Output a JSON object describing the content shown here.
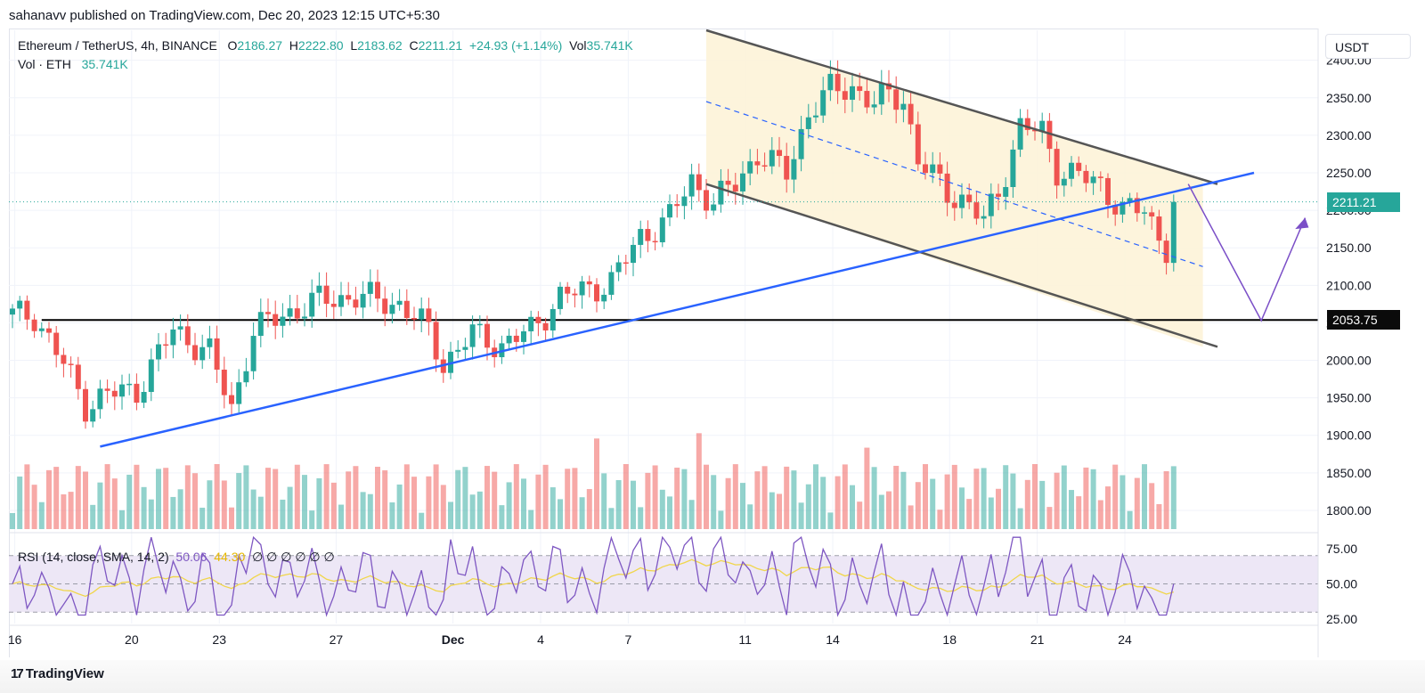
{
  "header": {
    "published_line": "sahanavv published on TradingView.com, Dec 20, 2023 12:15 UTC+5:30"
  },
  "legend": {
    "symbol": "Ethereum / TetherUS, 4h, BINANCE",
    "o_label": "O",
    "o_value": "2186.27",
    "h_label": "H",
    "h_value": "2222.80",
    "l_label": "L",
    "l_value": "2183.62",
    "c_label": "C",
    "c_value": "2211.21",
    "change": "+24.93 (+1.14%)",
    "vol_label": "Vol",
    "vol_value": "35.741K",
    "vol_row_label": "Vol · ETH",
    "vol_row_value": "35.741K",
    "rsi_label": "RSI (14, close, SMA, 14, 2)",
    "rsi_value": "50.06",
    "rsi_ma_value": "44.30",
    "rsi_extra": "∅ ∅ ∅ ∅ ∅ ∅"
  },
  "currency_button": "USDT",
  "price_tags": {
    "last": "2211.21",
    "support": "2053.75"
  },
  "footer": {
    "brand": "TradingView",
    "brand_mark": "17"
  },
  "colors": {
    "up": "#26a69a",
    "down": "#ef5350",
    "trendline": "#2962ff",
    "channel": "#555555",
    "channel_fill": "#fdf3d8",
    "projection": "#7b4fc7",
    "rsi": "#7e57c2",
    "rsi_ma": "#f0d64a",
    "rsi_band": "#ede7f6",
    "support": "#000000"
  },
  "chart_data": {
    "type": "candlestick",
    "price_axis": {
      "ylim": [
        1775,
        2440
      ],
      "ticks": [
        1800,
        1850,
        1900,
        1950,
        2000,
        2050,
        2100,
        2150,
        2200,
        2250,
        2300,
        2350,
        2400
      ]
    },
    "rsi_axis": {
      "ylim": [
        22,
        85
      ],
      "ticks": [
        25,
        50,
        75
      ]
    },
    "time_axis": {
      "labels": [
        "16",
        "20",
        "23",
        "27",
        "Dec",
        "4",
        "7",
        "11",
        "14",
        "18",
        "21",
        "24"
      ],
      "positions": [
        0.02,
        1.02,
        1.77,
        2.77,
        3.77,
        4.52,
        5.27,
        6.27,
        7.02,
        8.02,
        8.77,
        9.52
      ],
      "range": [
        0,
        10
      ]
    },
    "candle_count": 160,
    "anchors": [
      [
        0,
        2040
      ],
      [
        4,
        2060
      ],
      [
        8,
        2060
      ],
      [
        12,
        1995
      ],
      [
        15,
        1940
      ],
      [
        18,
        1955
      ],
      [
        22,
        1960
      ],
      [
        27,
        2040
      ],
      [
        32,
        2010
      ],
      [
        35,
        1935
      ],
      [
        38,
        2040
      ],
      [
        42,
        2060
      ],
      [
        47,
        2080
      ],
      [
        52,
        2085
      ],
      [
        58,
        2075
      ],
      [
        62,
        2040
      ],
      [
        64,
        1995
      ],
      [
        68,
        2035
      ],
      [
        72,
        2020
      ],
      [
        76,
        2040
      ],
      [
        80,
        2085
      ],
      [
        84,
        2095
      ],
      [
        87,
        2105
      ],
      [
        91,
        2165
      ],
      [
        95,
        2190
      ],
      [
        98,
        2240
      ],
      [
        101,
        2210
      ],
      [
        104,
        2235
      ],
      [
        107,
        2275
      ],
      [
        111,
        2250
      ],
      [
        114,
        2330
      ],
      [
        117,
        2360
      ],
      [
        120,
        2365
      ],
      [
        123,
        2340
      ],
      [
        125,
        2355
      ],
      [
        127,
        2350
      ],
      [
        129,
        2265
      ],
      [
        133,
        2225
      ],
      [
        135,
        2215
      ],
      [
        138,
        2185
      ],
      [
        140,
        2225
      ],
      [
        143,
        2310
      ],
      [
        146,
        2305
      ],
      [
        148,
        2255
      ],
      [
        151,
        2245
      ],
      [
        154,
        2235
      ],
      [
        157,
        2200
      ],
      [
        160,
        2200
      ],
      [
        163,
        2150
      ],
      [
        166,
        2240
      ],
      [
        168,
        2245
      ],
      [
        170,
        2170
      ],
      [
        172,
        2205
      ]
    ],
    "last_close": 2211.21,
    "support_level": 2053.75,
    "rsi_levels": {
      "upper": 70,
      "middle": 50,
      "lower": 30
    },
    "rsi_last": 50.06,
    "rsi_ma_last": 44.3
  }
}
